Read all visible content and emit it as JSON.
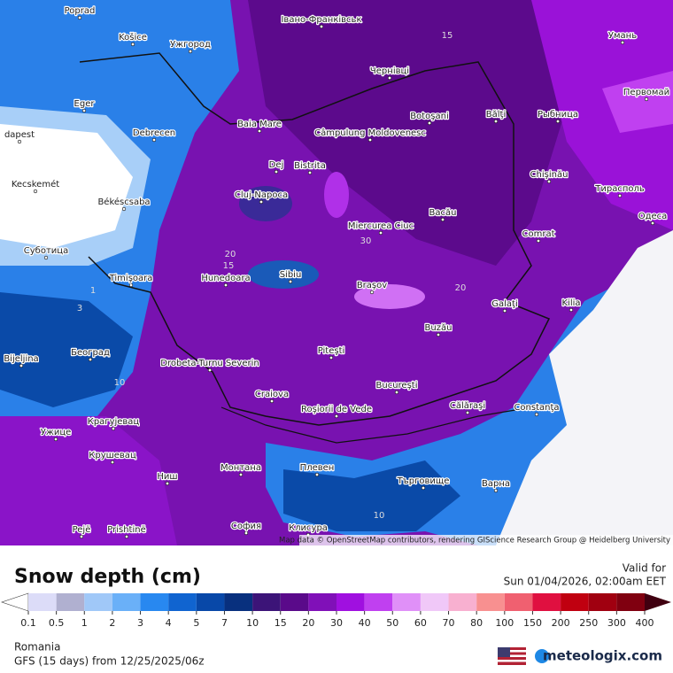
{
  "map": {
    "cities": [
      "Poprad",
      "Košice",
      "Ужгород",
      "Івано-Франківськ",
      "Умань",
      "Чернівці",
      "Eger",
      "Первомай",
      "Baia Mare",
      "Botoşani",
      "Bălţi",
      "Рыбница",
      "Debrecen",
      "Câmpulung Moldovenesc",
      "dapest",
      "Dej",
      "Bistrita",
      "Chişinău",
      "Kecskemét",
      "Тирасполь",
      "Cluj-Napoca",
      "Békéscsaba",
      "Miercurea Ciuc",
      "Bacău",
      "Одеса",
      "Comrat",
      "Суботица",
      "Sibiu",
      "Hunedoara",
      "Timişoara",
      "Braşov",
      "Galaţi",
      "Kilia",
      "Buzău",
      "Bijeljina",
      "Београд",
      "Piteşti",
      "Drobeta-Turnu Severin",
      "Craiova",
      "Bucureşti",
      "Călăraşi",
      "Constanţa",
      "Roşiorii de Vede",
      "Крагујевац",
      "Ужице",
      "Крушевац",
      "Монтана",
      "Плевен",
      "Ниш",
      "Търговище",
      "Варна",
      "Pejë",
      "Prishtinë",
      "София",
      "Клисура"
    ],
    "contour_labels": [
      "15",
      "20",
      "15",
      "1",
      "3",
      "10",
      "30",
      "20",
      "10"
    ],
    "attribution": "Map data © OpenStreetMap contributors, rendering GIScience Research Group @ Heidelberg University"
  },
  "legend": {
    "title": "Snow depth (cm)",
    "levels": [
      0.1,
      0.5,
      1,
      2,
      3,
      4,
      5,
      7,
      10,
      15,
      20,
      30,
      40,
      50,
      60,
      70,
      80,
      100,
      150,
      200,
      250,
      300,
      400
    ],
    "colors": [
      "#dcdcf8",
      "#b0b0d0",
      "#a0c8f8",
      "#6ab0f8",
      "#2888f0",
      "#1064d0",
      "#0848a8",
      "#08307e",
      "#3c1478",
      "#5a0a8a",
      "#8010b8",
      "#a010e0",
      "#c040f0",
      "#e090f8",
      "#f0c8f8",
      "#f8b0d0",
      "#f89090",
      "#f06070",
      "#e01040",
      "#c00010",
      "#a00010",
      "#800010"
    ],
    "under_color": "#ffffff",
    "over_color": "#400010"
  },
  "valid": {
    "label": "Valid for",
    "time": "Sun 01/04/2026, 02:00am EET"
  },
  "footer": {
    "region": "Romania",
    "model": "GFS (15 days) from 12/25/2025/06z",
    "brand": "meteologix.com"
  }
}
